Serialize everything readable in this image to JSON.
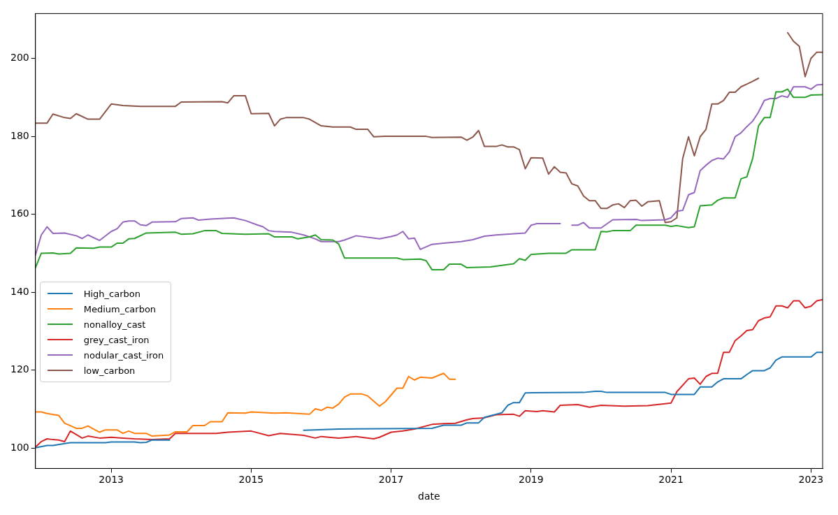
{
  "chart_data": {
    "type": "line",
    "xlabel": "date",
    "legend": "center left",
    "grid": false,
    "xlim": [
      "2011-12",
      "2023-03"
    ],
    "xticks": [
      "2013",
      "2015",
      "2017",
      "2019",
      "2021",
      "2023"
    ],
    "ylim": [
      94.8,
      211.5
    ],
    "yticks": [
      100,
      120,
      140,
      160,
      180,
      200
    ],
    "series": [
      {
        "name": "High_carbon",
        "color": "#1f77b4",
        "x": [
          "2011-12",
          "2012-02",
          "2012-03",
          "2012-05",
          "2012-06",
          "2012-12",
          "2013-01",
          "2013-05",
          "2013-06",
          "2013-07",
          "2013-08",
          "2013-11",
          "2013-12",
          "2015-10",
          "2016-04",
          "2017-08",
          "2017-10",
          "2018-01",
          "2018-02",
          "2018-04",
          "2018-05",
          "2018-08",
          "2018-09",
          "2018-10",
          "2018-11",
          "2018-12",
          "2019-10",
          "2019-12",
          "2020-01",
          "2020-02",
          "2020-12",
          "2021-01",
          "2021-05",
          "2021-06",
          "2021-08",
          "2021-09",
          "2021-10",
          "2022-01",
          "2022-02",
          "2022-03",
          "2022-05",
          "2022-06",
          "2022-07",
          "2022-08",
          "2023-01",
          "2023-02",
          "2023-03"
        ],
        "values": [
          100.1,
          100.7,
          100.7,
          101.2,
          101.4,
          101.4,
          101.6,
          101.6,
          101.4,
          101.5,
          102.1,
          102.1,
          null,
          104.6,
          104.9,
          105.1,
          105.9,
          105.9,
          106.5,
          106.5,
          107.9,
          109.1,
          111,
          111.7,
          111.7,
          114.2,
          114.3,
          114.6,
          114.6,
          114.3,
          114.3,
          113.8,
          113.8,
          115.7,
          115.7,
          117,
          117.8,
          117.8,
          118.9,
          119.9,
          119.9,
          120.6,
          122.6,
          123.4,
          123.4,
          124.6,
          124.6
        ]
      },
      {
        "name": "Medium_carbon",
        "color": "#ff7f0e",
        "x": [
          "2011-12",
          "2012-01",
          "2012-02",
          "2012-04",
          "2012-05",
          "2012-07",
          "2012-08",
          "2012-09",
          "2012-11",
          "2012-12",
          "2013-02",
          "2013-03",
          "2013-04",
          "2013-05",
          "2013-07",
          "2013-08",
          "2013-11",
          "2013-12",
          "2014-02",
          "2014-03",
          "2014-05",
          "2014-06",
          "2014-08",
          "2014-09",
          "2014-12",
          "2015-01",
          "2015-05",
          "2015-07",
          "2015-11",
          "2015-12",
          "2016-01",
          "2016-02",
          "2016-03",
          "2016-04",
          "2016-05",
          "2016-06",
          "2016-08",
          "2016-09",
          "2016-11",
          "2016-12",
          "2017-02",
          "2017-03",
          "2017-04",
          "2017-05",
          "2017-06",
          "2017-08",
          "2017-10",
          "2017-11",
          "2017-12"
        ],
        "values": [
          109.3,
          109.3,
          108.9,
          108.4,
          106.4,
          105.1,
          105.1,
          105.7,
          104.1,
          104.7,
          104.7,
          103.8,
          104.4,
          103.8,
          103.8,
          103.1,
          103.4,
          104.2,
          104.2,
          105.8,
          105.8,
          106.8,
          106.8,
          109.1,
          109,
          109.3,
          109,
          109.1,
          108.7,
          110.1,
          109.7,
          110.5,
          110.3,
          111.3,
          113.1,
          113.9,
          113.9,
          113.4,
          110.8,
          111.9,
          115.4,
          115.4,
          118.4,
          117.5,
          118.2,
          118,
          119.2,
          117.7,
          117.7
        ]
      },
      {
        "name": "nonalloy_cast",
        "color": "#2ca02c",
        "x": [
          "2011-12",
          "2012-01",
          "2012-03",
          "2012-04",
          "2012-06",
          "2012-07",
          "2012-10",
          "2012-11",
          "2013-01",
          "2013-02",
          "2013-03",
          "2013-04",
          "2013-05",
          "2013-07",
          "2013-12",
          "2014-01",
          "2014-03",
          "2014-05",
          "2014-07",
          "2014-08",
          "2014-12",
          "2015-04",
          "2015-05",
          "2015-08",
          "2015-09",
          "2015-11",
          "2015-12",
          "2016-01",
          "2016-03",
          "2016-04",
          "2016-05",
          "2017-02",
          "2017-03",
          "2017-06",
          "2017-07",
          "2017-08",
          "2017-10",
          "2017-11",
          "2018-01",
          "2018-02",
          "2018-06",
          "2018-10",
          "2018-11",
          "2018-12",
          "2019-01",
          "2019-04",
          "2019-07",
          "2019-08",
          "2019-12",
          "2020-01",
          "2020-02",
          "2020-03",
          "2020-06",
          "2020-07",
          "2020-12",
          "2021-01",
          "2021-02",
          "2021-04",
          "2021-05",
          "2021-06",
          "2021-08",
          "2021-09",
          "2021-10",
          "2021-12",
          "2022-01",
          "2022-02",
          "2022-03",
          "2022-04",
          "2022-05",
          "2022-06",
          "2022-07",
          "2022-08",
          "2022-09",
          "2022-10",
          "2022-12",
          "2023-01",
          "2023-03"
        ],
        "values": [
          146.3,
          150,
          150.1,
          149.8,
          150,
          151.4,
          151.3,
          151.6,
          151.6,
          152.6,
          152.6,
          153.7,
          153.8,
          155.2,
          155.4,
          154.9,
          155,
          155.8,
          155.8,
          155.1,
          154.9,
          155,
          154.2,
          154.2,
          153.7,
          154.2,
          154.7,
          153.5,
          153.4,
          152.4,
          148.8,
          148.8,
          148.4,
          148.5,
          148.1,
          145.8,
          145.8,
          147.2,
          147.2,
          146.3,
          146.5,
          147.3,
          148.6,
          148.2,
          149.7,
          150,
          150,
          150.9,
          150.9,
          155.6,
          155.5,
          155.8,
          155.8,
          157.2,
          157.2,
          156.9,
          157.1,
          156.6,
          156.8,
          162.2,
          162.4,
          163.6,
          164.2,
          164.2,
          169.1,
          169.6,
          174.3,
          182.7,
          184.8,
          184.8,
          191.4,
          191.4,
          192.1,
          190,
          190,
          190.6,
          190.7
        ]
      },
      {
        "name": "grey_cast_iron",
        "color": "#d62728",
        "x": [
          "2011-12",
          "2012-01",
          "2012-02",
          "2012-03",
          "2012-04",
          "2012-05",
          "2012-06",
          "2012-08",
          "2012-09",
          "2012-11",
          "2013-01",
          "2013-03",
          "2013-05",
          "2013-08",
          "2013-11",
          "2013-12",
          "2014-02",
          "2014-07",
          "2014-09",
          "2015-01",
          "2015-04",
          "2015-06",
          "2015-10",
          "2015-12",
          "2016-01",
          "2016-04",
          "2016-07",
          "2016-10",
          "2016-11",
          "2017-01",
          "2017-03",
          "2017-05",
          "2017-08",
          "2017-10",
          "2017-12",
          "2018-02",
          "2018-03",
          "2018-05",
          "2018-07",
          "2018-10",
          "2018-11",
          "2018-12",
          "2019-02",
          "2019-03",
          "2019-05",
          "2019-06",
          "2019-09",
          "2019-11",
          "2020-01",
          "2020-05",
          "2020-09",
          "2020-12",
          "2021-01",
          "2021-02",
          "2021-04",
          "2021-05",
          "2021-06",
          "2021-07",
          "2021-08",
          "2021-09",
          "2021-10",
          "2021-11",
          "2021-12",
          "2022-01",
          "2022-02",
          "2022-03",
          "2022-04",
          "2022-05",
          "2022-06",
          "2022-07",
          "2022-08",
          "2022-09",
          "2022-10",
          "2022-11",
          "2022-12",
          "2023-01",
          "2023-02",
          "2023-03"
        ],
        "values": [
          100.3,
          101.7,
          102.4,
          102.2,
          102.1,
          101.7,
          104.4,
          102.6,
          103.1,
          102.6,
          102.8,
          102.6,
          102.4,
          102.2,
          102.4,
          103.8,
          103.8,
          103.8,
          104.1,
          104.4,
          103.2,
          103.8,
          103.3,
          102.6,
          103,
          102.6,
          103,
          102.4,
          102.8,
          104.1,
          104.4,
          104.9,
          106.1,
          106.3,
          106.4,
          107.3,
          107.6,
          107.8,
          108.6,
          108.7,
          108.2,
          109.6,
          109.4,
          109.6,
          109.3,
          111,
          111.2,
          110.5,
          111,
          110.8,
          110.9,
          111.4,
          111.6,
          114.5,
          117.8,
          118,
          116.4,
          118.4,
          119.2,
          119.2,
          124.6,
          124.6,
          127.6,
          128.8,
          130.2,
          130.4,
          132.7,
          133.4,
          133.7,
          136.5,
          136.5,
          136,
          137.8,
          137.8,
          136,
          136.4,
          137.8,
          138.1
        ]
      },
      {
        "name": "nodular_cast_iron",
        "color": "#9467bd",
        "x": [
          "2011-12",
          "2012-01",
          "2012-02",
          "2012-03",
          "2012-05",
          "2012-07",
          "2012-08",
          "2012-09",
          "2012-11",
          "2013-01",
          "2013-02",
          "2013-03",
          "2013-04",
          "2013-05",
          "2013-06",
          "2013-07",
          "2013-08",
          "2013-12",
          "2014-01",
          "2014-03",
          "2014-04",
          "2014-06",
          "2014-10",
          "2014-12",
          "2015-02",
          "2015-03",
          "2015-04",
          "2015-05",
          "2015-08",
          "2015-10",
          "2015-12",
          "2016-01",
          "2016-04",
          "2016-05",
          "2016-07",
          "2016-11",
          "2017-01",
          "2017-02",
          "2017-03",
          "2017-04",
          "2017-05",
          "2017-06",
          "2017-08",
          "2017-10",
          "2018-01",
          "2018-03",
          "2018-05",
          "2018-07",
          "2018-11",
          "2018-12",
          "2019-01",
          "2019-02",
          "2019-06",
          "2019-07",
          "2019-08",
          "2019-09",
          "2019-10",
          "2019-11",
          "2020-01",
          "2020-03",
          "2020-07",
          "2020-08",
          "2020-12",
          "2021-01",
          "2021-02",
          "2021-03",
          "2021-04",
          "2021-05",
          "2021-06",
          "2021-07",
          "2021-08",
          "2021-09",
          "2021-10",
          "2021-11",
          "2021-12",
          "2022-01",
          "2022-02",
          "2022-03",
          "2022-04",
          "2022-05",
          "2022-06",
          "2022-07",
          "2022-08",
          "2022-09",
          "2022-10",
          "2022-12",
          "2023-01",
          "2023-02",
          "2023-03"
        ],
        "values": [
          149.5,
          154.7,
          156.8,
          155.1,
          155.2,
          154.5,
          153.8,
          154.7,
          153.3,
          155.6,
          156.3,
          158,
          158.3,
          158.3,
          157.3,
          157.1,
          158,
          158.1,
          158.9,
          159.1,
          158.5,
          158.8,
          159.1,
          158.4,
          157.3,
          156.8,
          155.8,
          155.6,
          155.4,
          154.7,
          153.7,
          153,
          153,
          153.4,
          154.5,
          153.7,
          154.3,
          154.7,
          155.6,
          153.7,
          153.9,
          151,
          152.3,
          152.6,
          153,
          153.5,
          154.4,
          154.7,
          155.1,
          155.2,
          157.2,
          157.6,
          157.6,
          null,
          157.2,
          157.2,
          157.9,
          156.5,
          156.5,
          158.6,
          158.7,
          158.4,
          158.6,
          159.1,
          160.8,
          161,
          165,
          165.6,
          171.2,
          172.6,
          173.8,
          174.4,
          174.2,
          176,
          179.9,
          180.9,
          182.5,
          183.9,
          186.2,
          189.2,
          189.7,
          189.7,
          190.4,
          190,
          192.7,
          192.7,
          192.1,
          193.2,
          193.3
        ]
      },
      {
        "name": "low_carbon",
        "color": "#8c564b",
        "x": [
          "2011-12",
          "2012-02",
          "2012-03",
          "2012-05",
          "2012-06",
          "2012-07",
          "2012-09",
          "2012-11",
          "2013-01",
          "2013-03",
          "2013-06",
          "2013-12",
          "2014-01",
          "2014-08",
          "2014-09",
          "2014-10",
          "2014-12",
          "2015-01",
          "2015-04",
          "2015-05",
          "2015-06",
          "2015-07",
          "2015-10",
          "2015-11",
          "2016-01",
          "2016-03",
          "2016-06",
          "2016-07",
          "2016-09",
          "2016-10",
          "2016-12",
          "2017-07",
          "2017-08",
          "2018-01",
          "2018-02",
          "2018-03",
          "2018-04",
          "2018-05",
          "2018-07",
          "2018-08",
          "2018-09",
          "2018-10",
          "2018-11",
          "2018-12",
          "2019-01",
          "2019-03",
          "2019-04",
          "2019-05",
          "2019-06",
          "2019-07",
          "2019-08",
          "2019-09",
          "2019-10",
          "2019-11",
          "2019-12",
          "2020-01",
          "2020-02",
          "2020-03",
          "2020-04",
          "2020-05",
          "2020-06",
          "2020-07",
          "2020-08",
          "2020-09",
          "2020-11",
          "2020-12",
          "2021-01",
          "2021-02",
          "2021-03",
          "2021-04",
          "2021-05",
          "2021-06",
          "2021-07",
          "2021-08",
          "2021-09",
          "2021-10",
          "2021-11",
          "2021-12",
          "2022-01",
          "2022-02",
          "2022-03",
          "2022-04",
          "2022-05",
          "2022-09",
          "2022-10",
          "2022-11",
          "2022-12",
          "2023-01",
          "2023-02",
          "2023-03"
        ],
        "values": [
          183.4,
          183.4,
          185.7,
          184.8,
          184.6,
          185.8,
          184.4,
          184.4,
          188.3,
          187.9,
          187.7,
          187.7,
          188.8,
          188.9,
          188.6,
          190.4,
          190.4,
          185.8,
          185.9,
          182.7,
          184.4,
          184.8,
          184.8,
          184.4,
          182.7,
          182.4,
          182.4,
          181.8,
          181.8,
          179.9,
          180,
          180,
          179.7,
          179.8,
          179,
          179.8,
          181.5,
          177.4,
          177.4,
          177.8,
          177.3,
          177.3,
          176.6,
          171.7,
          174.5,
          174.4,
          170.3,
          172.2,
          170.8,
          170.6,
          167.8,
          167.3,
          164.7,
          163.5,
          163.5,
          161.5,
          161.5,
          162.4,
          162.7,
          161.7,
          163.5,
          163.6,
          162.1,
          163.2,
          163.5,
          157.9,
          158.1,
          159.1,
          174.3,
          179.9,
          175,
          179.9,
          181.8,
          188.3,
          188.3,
          189.2,
          191.3,
          191.3,
          192.7,
          193.4,
          194.1,
          194.9,
          null,
          206.6,
          204.4,
          203.1,
          195.3,
          200,
          201.6,
          201.6
        ]
      }
    ]
  }
}
